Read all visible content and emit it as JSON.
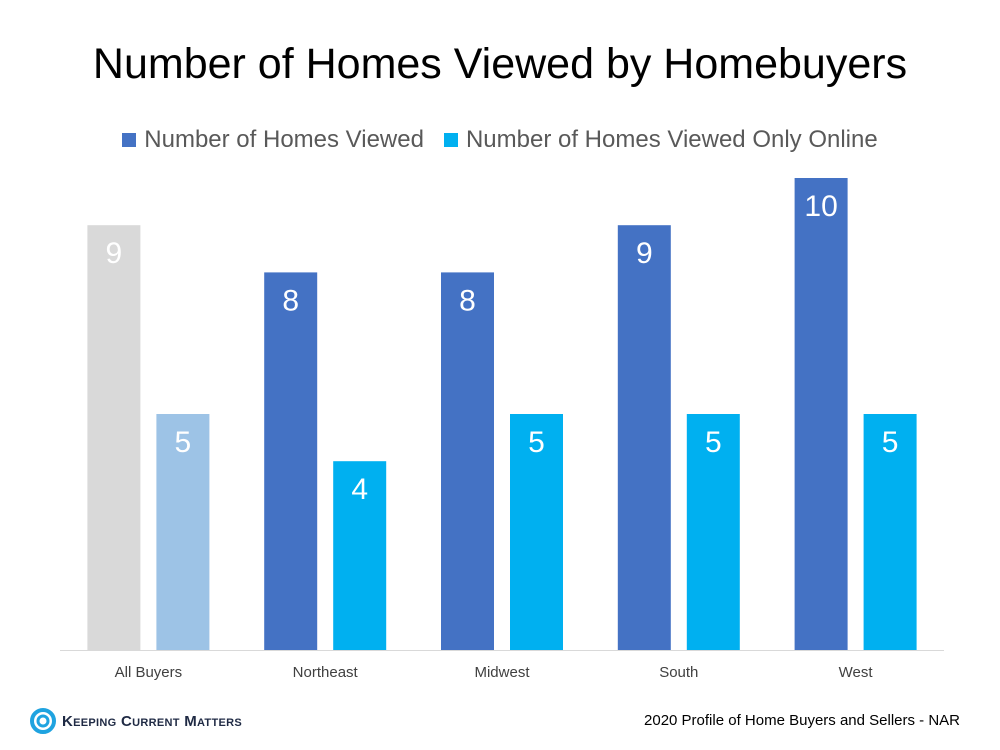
{
  "chart_data": {
    "type": "bar",
    "title": "Number of Homes Viewed by Homebuyers",
    "categories": [
      "All Buyers",
      "Northeast",
      "Midwest",
      "South",
      "West"
    ],
    "series": [
      {
        "name": "Number of Homes Viewed",
        "color": "#4472C4",
        "values": [
          9,
          8,
          8,
          9,
          10
        ],
        "highlight_colors": [
          "#D9D9D9",
          null,
          null,
          null,
          null
        ]
      },
      {
        "name": "Number of Homes Viewed Only Online",
        "color": "#00B0F0",
        "values": [
          5,
          4,
          5,
          5,
          5
        ],
        "highlight_colors": [
          "#9DC3E6",
          null,
          null,
          null,
          null
        ]
      }
    ],
    "ylim": [
      0,
      10
    ],
    "grid": false,
    "legend_position": "top"
  },
  "footer": {
    "logo_text": "Keeping Current Matters",
    "source": "2020 Profile of Home Buyers and Sellers - NAR"
  }
}
